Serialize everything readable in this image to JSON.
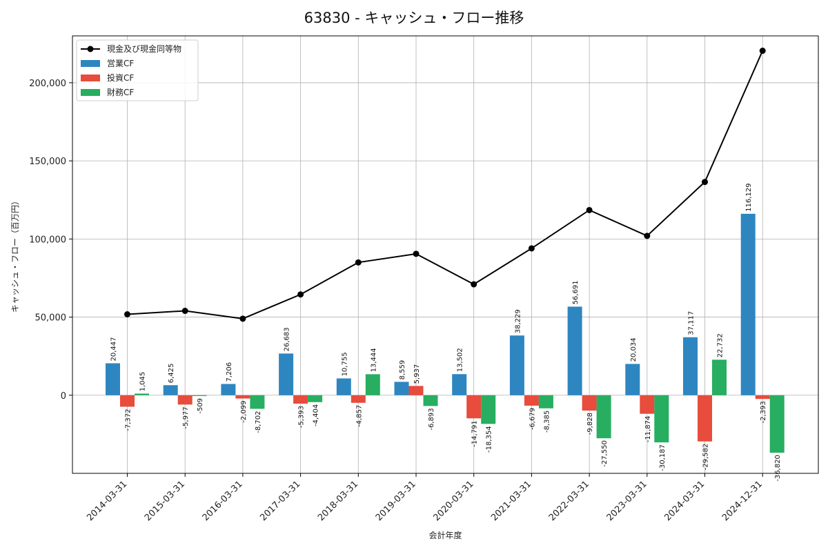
{
  "chart_data": {
    "type": "bar",
    "title": "63830 - キャッシュ・フロー推移",
    "xlabel": "会計年度",
    "ylabel": "キャッシュ・フロー（百万円）",
    "categories": [
      "2014-03-31",
      "2015-03-31",
      "2016-03-31",
      "2017-03-31",
      "2018-03-31",
      "2019-03-31",
      "2020-03-31",
      "2021-03-31",
      "2022-03-31",
      "2023-03-31",
      "2024-03-31",
      "2024-12-31"
    ],
    "ylim": [
      -50000,
      230000
    ],
    "yticks": [
      0,
      50000,
      100000,
      150000,
      200000
    ],
    "ytick_labels": [
      "0",
      "50,000",
      "100,000",
      "150,000",
      "200,000"
    ],
    "grid": true,
    "legend_position": "top-left",
    "series": [
      {
        "name": "営業CF",
        "kind": "bar",
        "color": "#2e86c1",
        "values": [
          20447,
          6425,
          7206,
          26683,
          10755,
          8559,
          13502,
          38229,
          56691,
          20034,
          37117,
          116129
        ],
        "labels": [
          "20,447",
          "6,425",
          "7,206",
          "26,683",
          "10,755",
          "8,559",
          "13,502",
          "38,229",
          "56,691",
          "20,034",
          "37,117",
          "116,129"
        ]
      },
      {
        "name": "投資CF",
        "kind": "bar",
        "color": "#e74c3c",
        "values": [
          -7372,
          -5977,
          -2099,
          -5393,
          -4857,
          5937,
          -14791,
          -6679,
          -9828,
          -11874,
          -29582,
          -2393
        ],
        "labels": [
          "-7,372",
          "-5,977",
          "-2,099",
          "-5,393",
          "-4,857",
          "5,937",
          "-14,791",
          "-6,679",
          "-9,828",
          "-11,874",
          "-29,582",
          "-2,393"
        ]
      },
      {
        "name": "財務CF",
        "kind": "bar",
        "color": "#27ae60",
        "values": [
          1045,
          -509,
          -8702,
          -4404,
          13444,
          -6893,
          -18354,
          -8385,
          -27550,
          -30187,
          22732,
          -36820
        ],
        "labels": [
          "1,045",
          "-509",
          "-8,702",
          "-4,404",
          "13,444",
          "-6,893",
          "-18,354",
          "-8,385",
          "-27,550",
          "-30,187",
          "22,732",
          "-36,820"
        ]
      },
      {
        "name": "現金及び現金同等物",
        "kind": "line",
        "color": "#000000",
        "values": [
          51800,
          54000,
          49000,
          64500,
          85000,
          90500,
          71000,
          94000,
          118500,
          102000,
          136500,
          220500
        ]
      }
    ]
  }
}
